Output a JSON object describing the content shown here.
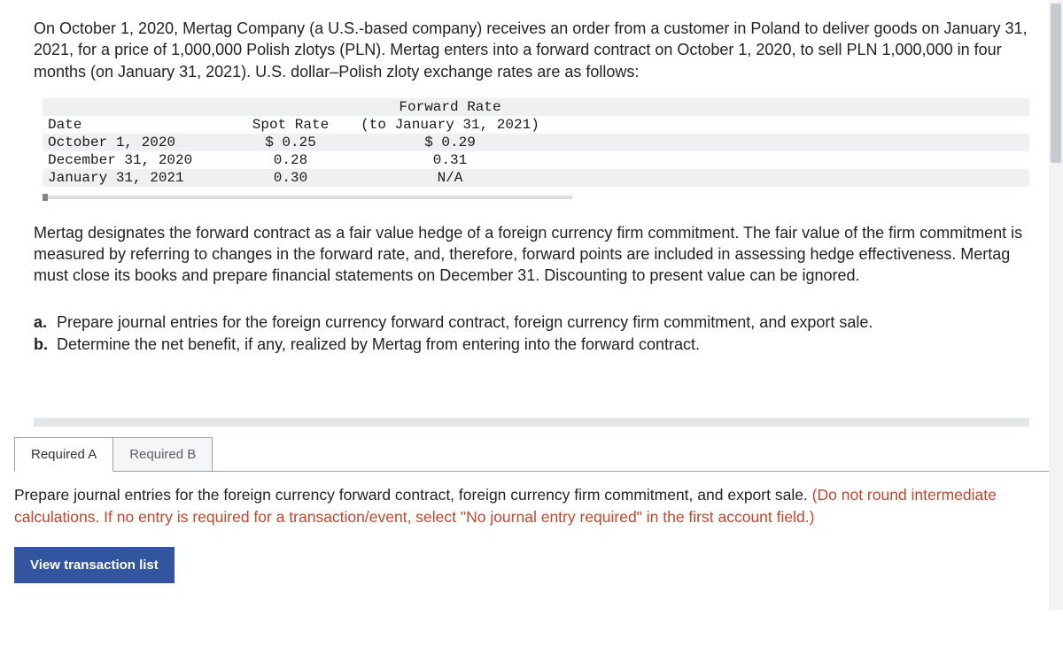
{
  "intro": "On October 1, 2020, Mertag Company (a U.S.-based company) receives an order from a customer in Poland to deliver goods on January 31, 2021, for a price of 1,000,000 Polish zlotys (PLN). Mertag enters into a forward contract on October 1, 2020, to sell PLN 1,000,000 in four months (on January 31, 2021). U.S. dollar–Polish zloty exchange rates are as follows:",
  "table": {
    "headers": {
      "fwd_line1": "Forward Rate",
      "date": "Date",
      "spot": "Spot Rate",
      "fwd_line2": "(to January 31, 2021)"
    },
    "rows": [
      {
        "date": "October 1, 2020",
        "spot": "$ 0.25",
        "fwd": "$ 0.29"
      },
      {
        "date": "December 31, 2020",
        "spot": "0.28",
        "fwd": "0.31"
      },
      {
        "date": "January 31, 2021",
        "spot": "0.30",
        "fwd": "N/A"
      }
    ],
    "colors": {
      "odd_row_bg": "#eef0f2",
      "even_row_bg": "#ffffff"
    }
  },
  "body": "Mertag designates the forward contract as a fair value hedge of a foreign currency firm commitment. The fair value of the firm commitment is measured by referring to changes in the forward rate, and, therefore, forward points are included in assessing hedge effectiveness. Mertag must close its books and prepare financial statements on December 31. Discounting to present value can be ignored.",
  "questions": {
    "a_label": "a.",
    "a_text": "Prepare journal entries for the foreign currency forward contract, foreign currency firm commitment, and export sale.",
    "b_label": "b.",
    "b_text": "Determine the net benefit, if any, realized by Mertag from entering into the forward contract."
  },
  "tabs": {
    "a": "Required A",
    "b": "Required B",
    "active": "a"
  },
  "instruction": {
    "main": "Prepare journal entries for the foreign currency forward contract, foreign currency firm commitment, and export sale. ",
    "hint": "(Do not round intermediate calculations. If no entry is required for a transaction/event, select \"No journal entry required\" in the first account field.)"
  },
  "button": "View transaction list",
  "colors": {
    "text": "#232323",
    "hint": "#c1472e",
    "button_bg": "#33559f",
    "button_text": "#ffffff",
    "gray_bar": "#e4e7ea",
    "tab_border": "#9aa0a6"
  }
}
